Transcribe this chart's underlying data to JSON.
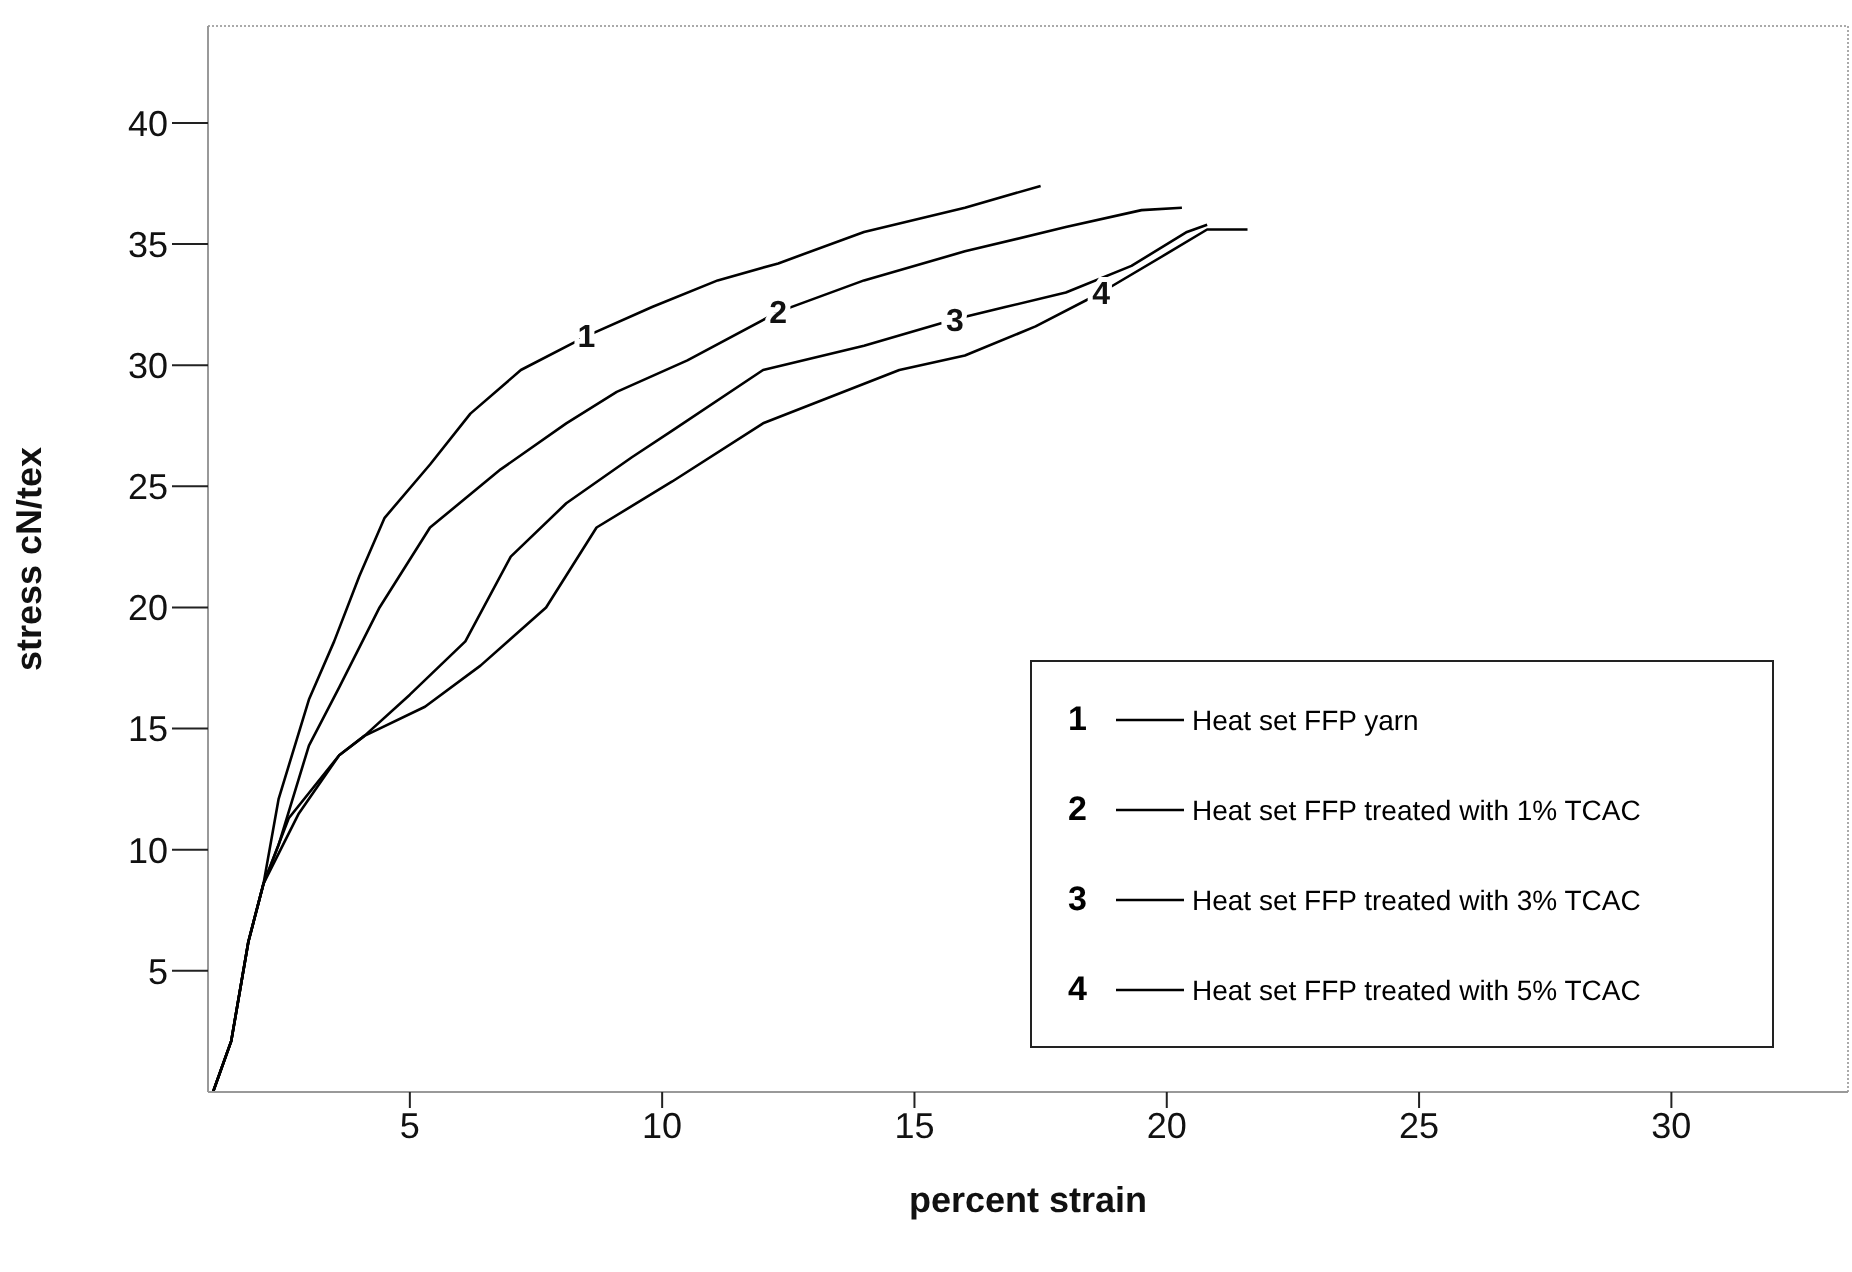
{
  "chart_data": {
    "type": "line",
    "xlabel": "percent strain",
    "ylabel": "stress  cN/tex",
    "xlim": [
      1,
      33.5
    ],
    "ylim": [
      0,
      44
    ],
    "xticks": [
      5,
      10,
      15,
      20,
      25,
      30
    ],
    "yticks": [
      5,
      10,
      15,
      20,
      25,
      30,
      35,
      40
    ],
    "grid": false,
    "legend": "bottom right",
    "marker": "none",
    "line_style": "solid",
    "annotations": [
      {
        "text": "1",
        "x": 8.5,
        "y": 31.2
      },
      {
        "text": "2",
        "x": 12.3,
        "y": 32.2
      },
      {
        "text": "3",
        "x": 15.8,
        "y": 31.9
      },
      {
        "text": "4",
        "x": 18.7,
        "y": 33.0
      }
    ],
    "series": [
      {
        "name": "Heat set FFP yarn",
        "color": "#000000",
        "x": [
          1.1,
          1.46,
          1.8,
          2.1,
          2.4,
          3.0,
          3.5,
          4.0,
          4.5,
          5.4,
          6.2,
          7.2,
          8.5,
          9.8,
          11.1,
          12.3,
          14.0,
          16.0,
          17.5
        ],
        "values": [
          0,
          2.1,
          6.2,
          8.6,
          12.1,
          16.2,
          18.6,
          21.3,
          23.7,
          25.9,
          28.0,
          29.8,
          31.2,
          32.4,
          33.5,
          34.2,
          35.5,
          36.5,
          37.4
        ]
      },
      {
        "name": "Heat set FFP treated with 1% TCAC",
        "color": "#000000",
        "x": [
          1.1,
          1.46,
          1.8,
          2.1,
          2.4,
          3.0,
          3.6,
          4.4,
          5.4,
          6.8,
          8.1,
          9.1,
          10.5,
          12.3,
          14.0,
          16.0,
          18.0,
          19.5,
          20.3
        ],
        "values": [
          0,
          2.1,
          6.2,
          8.6,
          10.2,
          14.3,
          16.7,
          20.0,
          23.3,
          25.7,
          27.6,
          28.9,
          30.2,
          32.2,
          33.5,
          34.7,
          35.7,
          36.4,
          36.5
        ]
      },
      {
        "name": "Heat set FFP treated with 3% TCAC",
        "color": "#000000",
        "x": [
          1.1,
          1.46,
          1.8,
          2.1,
          2.6,
          3.6,
          4.1,
          5.0,
          6.1,
          7.0,
          8.1,
          9.4,
          10.2,
          12.0,
          14.0,
          15.8,
          16.8,
          18.0,
          19.3,
          20.4,
          20.8
        ],
        "values": [
          0,
          2.1,
          6.2,
          8.6,
          11.3,
          13.9,
          14.7,
          16.4,
          18.6,
          22.1,
          24.3,
          26.2,
          27.3,
          29.8,
          30.8,
          31.9,
          32.4,
          33.0,
          34.1,
          35.5,
          35.8
        ]
      },
      {
        "name": "Heat set FFP treated with 5% TCAC",
        "color": "#000000",
        "x": [
          1.1,
          1.46,
          1.8,
          2.1,
          2.8,
          3.6,
          4.1,
          5.3,
          6.4,
          7.7,
          8.7,
          10.2,
          12.0,
          14.7,
          16.0,
          17.4,
          18.7,
          20.0,
          20.8,
          21.6
        ],
        "values": [
          0,
          2.1,
          6.2,
          8.6,
          11.5,
          13.9,
          14.7,
          15.9,
          17.6,
          20.0,
          23.3,
          25.2,
          27.6,
          29.8,
          30.4,
          31.6,
          33.0,
          34.6,
          35.6,
          35.6
        ]
      }
    ]
  }
}
